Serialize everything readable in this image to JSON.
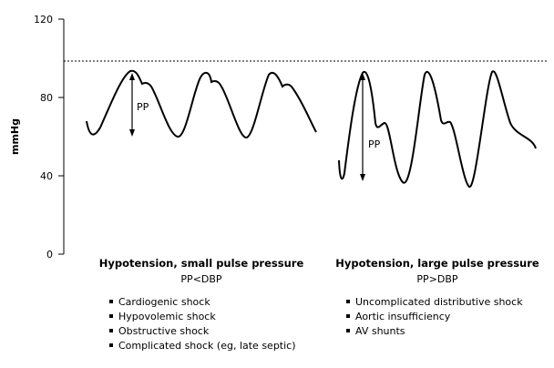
{
  "axis": {
    "ylabel": "mmHg",
    "ticks": [
      "0",
      "40",
      "80",
      "120"
    ],
    "tick_values": [
      0,
      40,
      80,
      120
    ],
    "ylim": [
      0,
      120
    ]
  },
  "panels": [
    {
      "title": "Hypotension, small pulse pressure",
      "subtitle": "PP<DBP",
      "pp_label": "PP",
      "causes": [
        "Cardiogenic shock",
        "Hypovolemic shock",
        "Obstructive shock",
        "Complicated shock (eg, late septic)"
      ]
    },
    {
      "title": "Hypotension, large pulse pressure",
      "subtitle": "PP>DBP",
      "pp_label": "PP",
      "causes": [
        "Uncomplicated distributive shock",
        "Aortic insufficiency",
        "AV shunts"
      ]
    }
  ],
  "reference_line_value": 98
}
